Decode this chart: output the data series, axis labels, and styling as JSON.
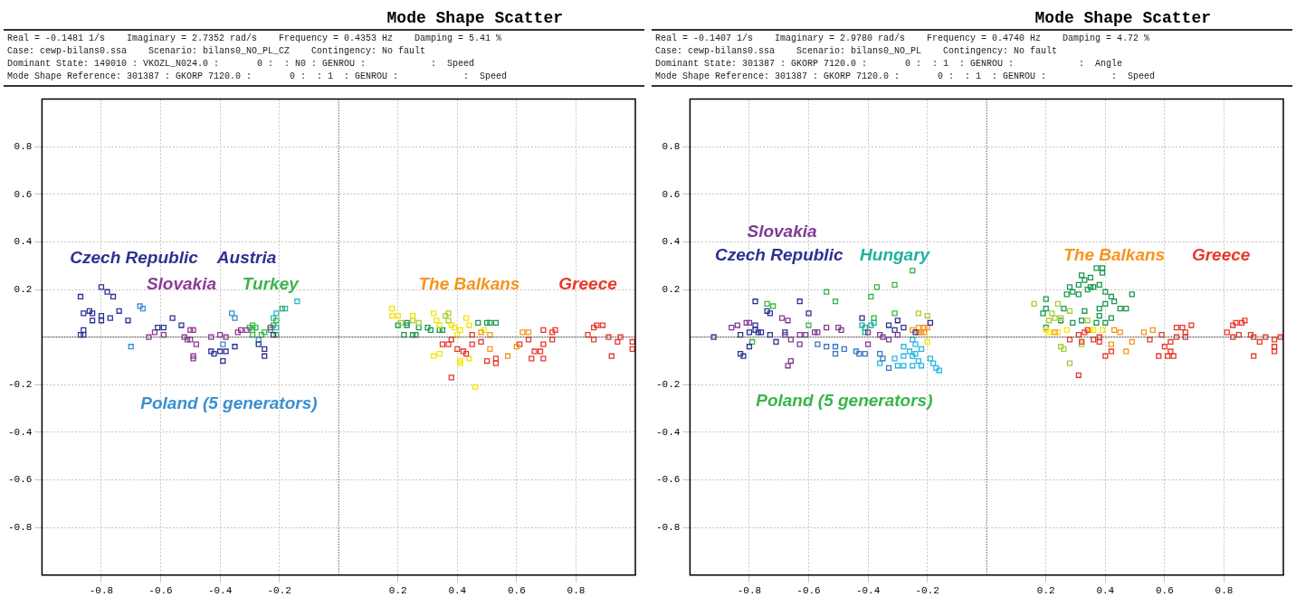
{
  "chart_data": [
    {
      "type": "scatter",
      "title": "Mode Shape Scatter",
      "subtitle": "Real = -0.1481 1/s    Imaginary = 2.7352 rad/s    Frequency = 0.4353 Hz    Damping = 5.41 %\nCase: cewp-bilans0.ssa    Scenario: bilans0_NO_PL_CZ    Contingency: No fault\nDominant State: 149010 : VKOZL_N024.0 :       0 :  : N0 : GENROU :            :  Speed\nMode Shape Reference: 301387 : GKORP 7120.0 :       0 :  : 1  : GENROU :            :  Speed",
      "marker": "square",
      "grid": true,
      "legend": false,
      "xlim": [
        -1,
        1
      ],
      "ylim": [
        -1,
        1
      ],
      "xticks": [
        -0.8,
        -0.6,
        -0.4,
        -0.2,
        0.2,
        0.4,
        0.6,
        0.8
      ],
      "yticks": [
        -0.8,
        -0.6,
        -0.4,
        -0.2,
        0.2,
        0.4,
        0.6,
        0.8
      ],
      "ref_lines": [
        {
          "axis": "x",
          "value": 0,
          "color": "#000000",
          "line_style": "dotted"
        },
        {
          "axis": "y",
          "value": 0,
          "color": "#444444",
          "line_style": "dashed"
        }
      ],
      "annotations": [
        "Czech Republic",
        "Austria",
        "Slovakia",
        "Turkey",
        "Poland (5 generators)",
        "The Balkans",
        "Greece"
      ],
      "series": [
        {
          "color": "#2e3192",
          "x": [
            -0.87,
            -0.8,
            -0.78,
            -0.76,
            -0.86,
            -0.84,
            -0.83,
            -0.83,
            -0.8,
            -0.8,
            -0.77,
            -0.74,
            -0.71,
            -0.86,
            -0.87,
            -0.86,
            -0.56,
            -0.53,
            -0.61,
            -0.59
          ],
          "values": [
            0.17,
            0.21,
            0.19,
            0.17,
            0.1,
            0.11,
            0.1,
            0.07,
            0.09,
            0.07,
            0.08,
            0.11,
            0.07,
            0.03,
            0.01,
            0.01,
            0.08,
            0.05,
            0.04,
            0.04
          ]
        },
        {
          "color": "#2e3192",
          "x": [
            -0.43,
            -0.42,
            -0.4,
            -0.38,
            -0.39,
            -0.35,
            -0.27,
            -0.25,
            -0.25,
            -0.22
          ],
          "values": [
            -0.06,
            -0.07,
            -0.06,
            -0.06,
            -0.1,
            -0.04,
            -0.03,
            -0.05,
            -0.08,
            0.01
          ]
        },
        {
          "color": "#8e3a96",
          "x": [
            -0.64,
            -0.62,
            -0.59,
            -0.52,
            -0.5,
            -0.49,
            -0.51,
            -0.5,
            -0.48,
            -0.49,
            -0.49,
            -0.43,
            -0.4,
            -0.38,
            -0.34,
            -0.33,
            -0.31,
            -0.23
          ],
          "values": [
            0.0,
            0.02,
            0.01,
            0.0,
            0.03,
            0.03,
            -0.01,
            -0.01,
            -0.03,
            -0.08,
            -0.09,
            0.0,
            0.01,
            0.0,
            0.02,
            0.03,
            0.03,
            0.04
          ]
        },
        {
          "color": "#39b54a",
          "x": [
            -0.3,
            -0.29,
            -0.28,
            -0.25,
            -0.29,
            -0.23,
            -0.21,
            -0.19,
            -0.21,
            -0.22,
            -0.26,
            -0.29
          ],
          "values": [
            0.04,
            0.03,
            0.04,
            0.02,
            0.05,
            0.03,
            0.01,
            0.12,
            0.07,
            0.05,
            0.01,
            0.01
          ]
        },
        {
          "color": "#3a8fd0",
          "x": [
            -0.7,
            -0.67,
            -0.66,
            -0.36,
            -0.35,
            -0.39,
            -0.27
          ],
          "values": [
            -0.04,
            0.13,
            0.12,
            0.1,
            0.08,
            -0.03,
            -0.01
          ]
        },
        {
          "color": "#f7941d",
          "x": [
            0.48,
            0.51,
            0.51,
            0.57,
            0.6,
            0.62,
            0.64
          ],
          "values": [
            0.02,
            0.01,
            -0.05,
            -0.08,
            -0.04,
            0.02,
            0.02
          ]
        },
        {
          "color": "#e8392b",
          "x": [
            0.38,
            0.35,
            0.37,
            0.4,
            0.42,
            0.43,
            0.45,
            0.45,
            0.48,
            0.38,
            0.5,
            0.53,
            0.53,
            0.61,
            0.64,
            0.66,
            0.65,
            0.68,
            0.69,
            0.69,
            0.69,
            0.72,
            0.73,
            0.72,
            0.84,
            0.86,
            0.87,
            0.89,
            0.91,
            0.86,
            0.94,
            0.95,
            0.99,
            0.99,
            0.92
          ],
          "values": [
            -0.01,
            -0.03,
            -0.03,
            -0.05,
            -0.06,
            -0.07,
            0.01,
            -0.03,
            -0.02,
            -0.17,
            -0.1,
            -0.09,
            -0.11,
            -0.03,
            -0.01,
            -0.06,
            -0.09,
            -0.06,
            -0.09,
            -0.03,
            0.03,
            0.02,
            0.03,
            -0.01,
            0.01,
            0.04,
            0.05,
            0.05,
            0.0,
            -0.01,
            -0.02,
            0.0,
            -0.02,
            -0.05,
            -0.08
          ]
        },
        {
          "color": "#27b4cc",
          "x": [
            -0.14,
            -0.18,
            -0.21,
            -0.22,
            -0.21
          ],
          "values": [
            0.15,
            0.12,
            0.1,
            0.08,
            0.04
          ]
        },
        {
          "color": "#f2e600",
          "x": [
            0.18,
            0.18,
            0.2,
            0.25,
            0.32,
            0.33,
            0.34,
            0.38,
            0.39,
            0.41,
            0.4,
            0.43,
            0.44,
            0.32,
            0.34,
            0.41,
            0.41,
            0.44,
            0.46,
            0.49
          ],
          "values": [
            0.12,
            0.09,
            0.09,
            0.09,
            0.1,
            0.07,
            0.05,
            0.05,
            0.04,
            0.03,
            0.01,
            0.08,
            0.05,
            -0.08,
            -0.07,
            -0.1,
            -0.11,
            -0.09,
            -0.21,
            0.03
          ]
        },
        {
          "color": "#a6ce39",
          "x": [
            0.21,
            0.25,
            0.27,
            0.36,
            0.37,
            0.37
          ],
          "values": [
            0.06,
            0.07,
            0.06,
            0.09,
            0.1,
            0.07
          ]
        },
        {
          "color": "#1a9850",
          "x": [
            0.2,
            0.23,
            0.23,
            0.22,
            0.25,
            0.26,
            0.27,
            0.3,
            0.31,
            0.34,
            0.35,
            0.47,
            0.5,
            0.51,
            0.53
          ],
          "values": [
            0.05,
            0.06,
            0.05,
            0.01,
            0.01,
            0.01,
            0.04,
            0.04,
            0.03,
            0.03,
            0.03,
            0.06,
            0.06,
            0.06,
            0.06
          ]
        }
      ]
    },
    {
      "type": "scatter",
      "title": "Mode Shape Scatter",
      "subtitle": "Real = -0.1407 1/s    Imaginary = 2.9780 rad/s    Frequency = 0.4740 Hz    Damping = 4.72 %\nCase: cewp-bilans0.ssa    Scenario: bilans0_NO_PL    Contingency: No fault\nDominant State: 301387 : GKORP 7120.0 :       0 :  : 1  : GENROU :            :  Angle\nMode Shape Reference: 301387 : GKORP 7120.0 :       0 :  : 1  : GENROU :            :  Speed",
      "marker": "square",
      "grid": true,
      "legend": false,
      "xlim": [
        -1,
        1
      ],
      "ylim": [
        -1,
        1
      ],
      "xticks": [
        -0.8,
        -0.6,
        -0.4,
        -0.2,
        0.2,
        0.4,
        0.6,
        0.8
      ],
      "yticks": [
        -0.8,
        -0.6,
        -0.4,
        -0.2,
        0.2,
        0.4,
        0.6,
        0.8
      ],
      "ref_lines": [
        {
          "axis": "x",
          "value": 0,
          "color": "#000000",
          "line_style": "dotted"
        },
        {
          "axis": "y",
          "value": 0,
          "color": "#444444",
          "line_style": "dashed"
        }
      ],
      "annotations": [
        "Slovakia",
        "Czech Republic",
        "Hungary",
        "Poland (5 generators)",
        "The Balkans",
        "Greece"
      ],
      "series": [
        {
          "color": "#7f3a96",
          "x": [
            -0.86,
            -0.84,
            -0.81,
            -0.8,
            -0.69,
            -0.67,
            -0.68,
            -0.66,
            -0.63,
            -0.63,
            -0.61,
            -0.58,
            -0.57,
            -0.54,
            -0.5,
            -0.49,
            -0.66,
            -0.67,
            -0.4,
            -0.4,
            -0.36,
            -0.35,
            -0.33,
            -0.3
          ],
          "values": [
            0.04,
            0.05,
            0.06,
            0.06,
            0.08,
            0.07,
            0.01,
            -0.01,
            0.01,
            -0.03,
            0.01,
            0.02,
            0.02,
            0.04,
            0.04,
            0.03,
            -0.1,
            -0.12,
            0.02,
            -0.03,
            0.01,
            0.0,
            -0.01,
            0.01
          ]
        },
        {
          "color": "#2e3192",
          "x": [
            -0.92,
            -0.83,
            -0.8,
            -0.78,
            -0.78,
            -0.77,
            -0.76,
            -0.78,
            -0.74,
            -0.73,
            -0.73,
            -0.71,
            -0.8,
            -0.83,
            -0.82,
            -0.63,
            -0.6,
            -0.68,
            -0.42,
            -0.33,
            -0.3,
            -0.28,
            -0.31,
            -0.24,
            -0.19
          ],
          "values": [
            0.0,
            0.01,
            0.02,
            0.05,
            0.03,
            0.02,
            0.02,
            0.15,
            0.11,
            0.1,
            0.01,
            -0.02,
            -0.04,
            -0.07,
            -0.08,
            0.15,
            0.1,
            0.02,
            0.08,
            0.05,
            0.07,
            0.04,
            0.03,
            0.02,
            0.06
          ]
        },
        {
          "color": "#1fb0a0",
          "x": [
            -0.42,
            -0.41,
            -0.39,
            -0.41,
            -0.38
          ],
          "values": [
            0.05,
            0.04,
            0.05,
            0.02,
            0.06
          ]
        },
        {
          "color": "#39b54a",
          "x": [
            -0.54,
            -0.51,
            -0.39,
            -0.37,
            -0.31,
            -0.25,
            -0.6,
            -0.74,
            -0.72,
            -0.79,
            -0.38,
            -0.31
          ],
          "values": [
            0.19,
            0.15,
            0.17,
            0.21,
            0.22,
            0.28,
            0.05,
            0.14,
            0.13,
            -0.02,
            0.08,
            0.1
          ]
        },
        {
          "color": "#f7941d",
          "x": [
            -0.25,
            -0.23,
            -0.21,
            -0.2,
            -0.22,
            -0.23,
            -0.21,
            0.23,
            0.43,
            0.45,
            0.42,
            0.47,
            0.49,
            0.53,
            0.56
          ],
          "values": [
            0.03,
            0.04,
            0.04,
            0.04,
            0.02,
            0.02,
            0.02,
            0.02,
            0.03,
            0.02,
            -0.03,
            -0.06,
            -0.02,
            0.02,
            0.03
          ]
        },
        {
          "color": "#e8392b",
          "x": [
            0.28,
            0.31,
            0.32,
            0.33,
            0.34,
            0.36,
            0.38,
            0.38,
            0.4,
            0.42,
            0.31,
            0.55,
            0.59,
            0.6,
            0.58,
            0.61,
            0.62,
            0.63,
            0.62,
            0.64,
            0.64,
            0.66,
            0.67,
            0.67,
            0.69,
            0.81,
            0.83,
            0.84,
            0.86,
            0.87,
            0.85,
            0.83,
            0.89,
            0.9,
            0.92,
            0.94,
            0.97,
            0.97,
            0.97,
            0.99,
            0.9
          ],
          "values": [
            -0.01,
            0.01,
            -0.02,
            0.02,
            0.03,
            -0.01,
            0.0,
            -0.02,
            -0.08,
            -0.06,
            -0.16,
            -0.01,
            0.01,
            -0.04,
            -0.08,
            -0.08,
            -0.06,
            -0.08,
            -0.02,
            0.0,
            0.04,
            0.04,
            0.02,
            0.0,
            0.05,
            0.02,
            0.05,
            0.06,
            0.06,
            0.07,
            0.01,
            0.0,
            0.01,
            0.0,
            -0.02,
            0.0,
            -0.01,
            -0.04,
            -0.06,
            0.0,
            -0.08
          ]
        },
        {
          "color": "#3a76c0",
          "x": [
            -0.57,
            -0.54,
            -0.51,
            -0.51,
            -0.48,
            -0.44,
            -0.43,
            -0.41,
            -0.36,
            -0.35,
            -0.33
          ],
          "values": [
            -0.03,
            -0.04,
            -0.07,
            -0.04,
            -0.05,
            -0.06,
            -0.07,
            -0.07,
            -0.07,
            -0.09,
            -0.13
          ]
        },
        {
          "color": "#29b6e3",
          "x": [
            -0.28,
            -0.25,
            -0.24,
            -0.26,
            -0.28,
            -0.31,
            -0.3,
            -0.28,
            -0.25,
            -0.23,
            -0.22,
            -0.22,
            -0.19,
            -0.18,
            -0.17,
            -0.16,
            -0.36,
            -0.25,
            -0.24
          ],
          "values": [
            -0.04,
            -0.01,
            -0.03,
            -0.06,
            -0.08,
            -0.09,
            -0.12,
            -0.12,
            -0.12,
            -0.1,
            -0.05,
            -0.12,
            -0.09,
            -0.11,
            -0.13,
            -0.14,
            -0.11,
            -0.08,
            -0.07
          ]
        },
        {
          "color": "#ffe600",
          "x": [
            -0.2,
            0.2,
            0.21,
            0.24,
            0.27,
            0.35,
            0.36,
            0.39
          ],
          "values": [
            -0.02,
            0.03,
            0.02,
            0.02,
            0.03,
            0.03,
            0.03,
            0.03
          ]
        },
        {
          "color": "#a6ce39",
          "x": [
            -0.23,
            -0.2,
            0.16,
            0.24,
            0.22,
            0.23,
            0.25,
            0.28,
            0.21,
            0.25,
            0.26,
            0.28,
            0.32,
            0.34
          ],
          "values": [
            0.1,
            0.09,
            0.14,
            0.14,
            0.1,
            0.08,
            0.08,
            0.11,
            0.07,
            -0.04,
            -0.05,
            -0.11,
            -0.03,
            0.07
          ]
        },
        {
          "color": "#1a9850",
          "x": [
            0.37,
            0.39,
            0.39,
            0.32,
            0.35,
            0.33,
            0.35,
            0.34,
            0.36,
            0.31,
            0.28,
            0.29,
            0.27,
            0.31,
            0.38,
            0.4,
            0.42,
            0.43,
            0.45,
            0.47,
            0.49,
            0.2,
            0.26,
            0.38,
            0.4,
            0.42,
            0.2,
            0.19,
            0.33,
            0.38,
            0.32,
            0.29,
            0.25,
            0.4,
            0.37,
            0.2
          ],
          "values": [
            0.29,
            0.29,
            0.27,
            0.26,
            0.25,
            0.24,
            0.21,
            0.2,
            0.21,
            0.22,
            0.21,
            0.19,
            0.18,
            0.18,
            0.22,
            0.19,
            0.17,
            0.15,
            0.12,
            0.12,
            0.18,
            0.16,
            0.12,
            0.12,
            0.14,
            0.08,
            0.12,
            0.1,
            0.11,
            0.09,
            0.07,
            0.06,
            0.07,
            0.06,
            0.06,
            0.04
          ]
        }
      ]
    }
  ]
}
